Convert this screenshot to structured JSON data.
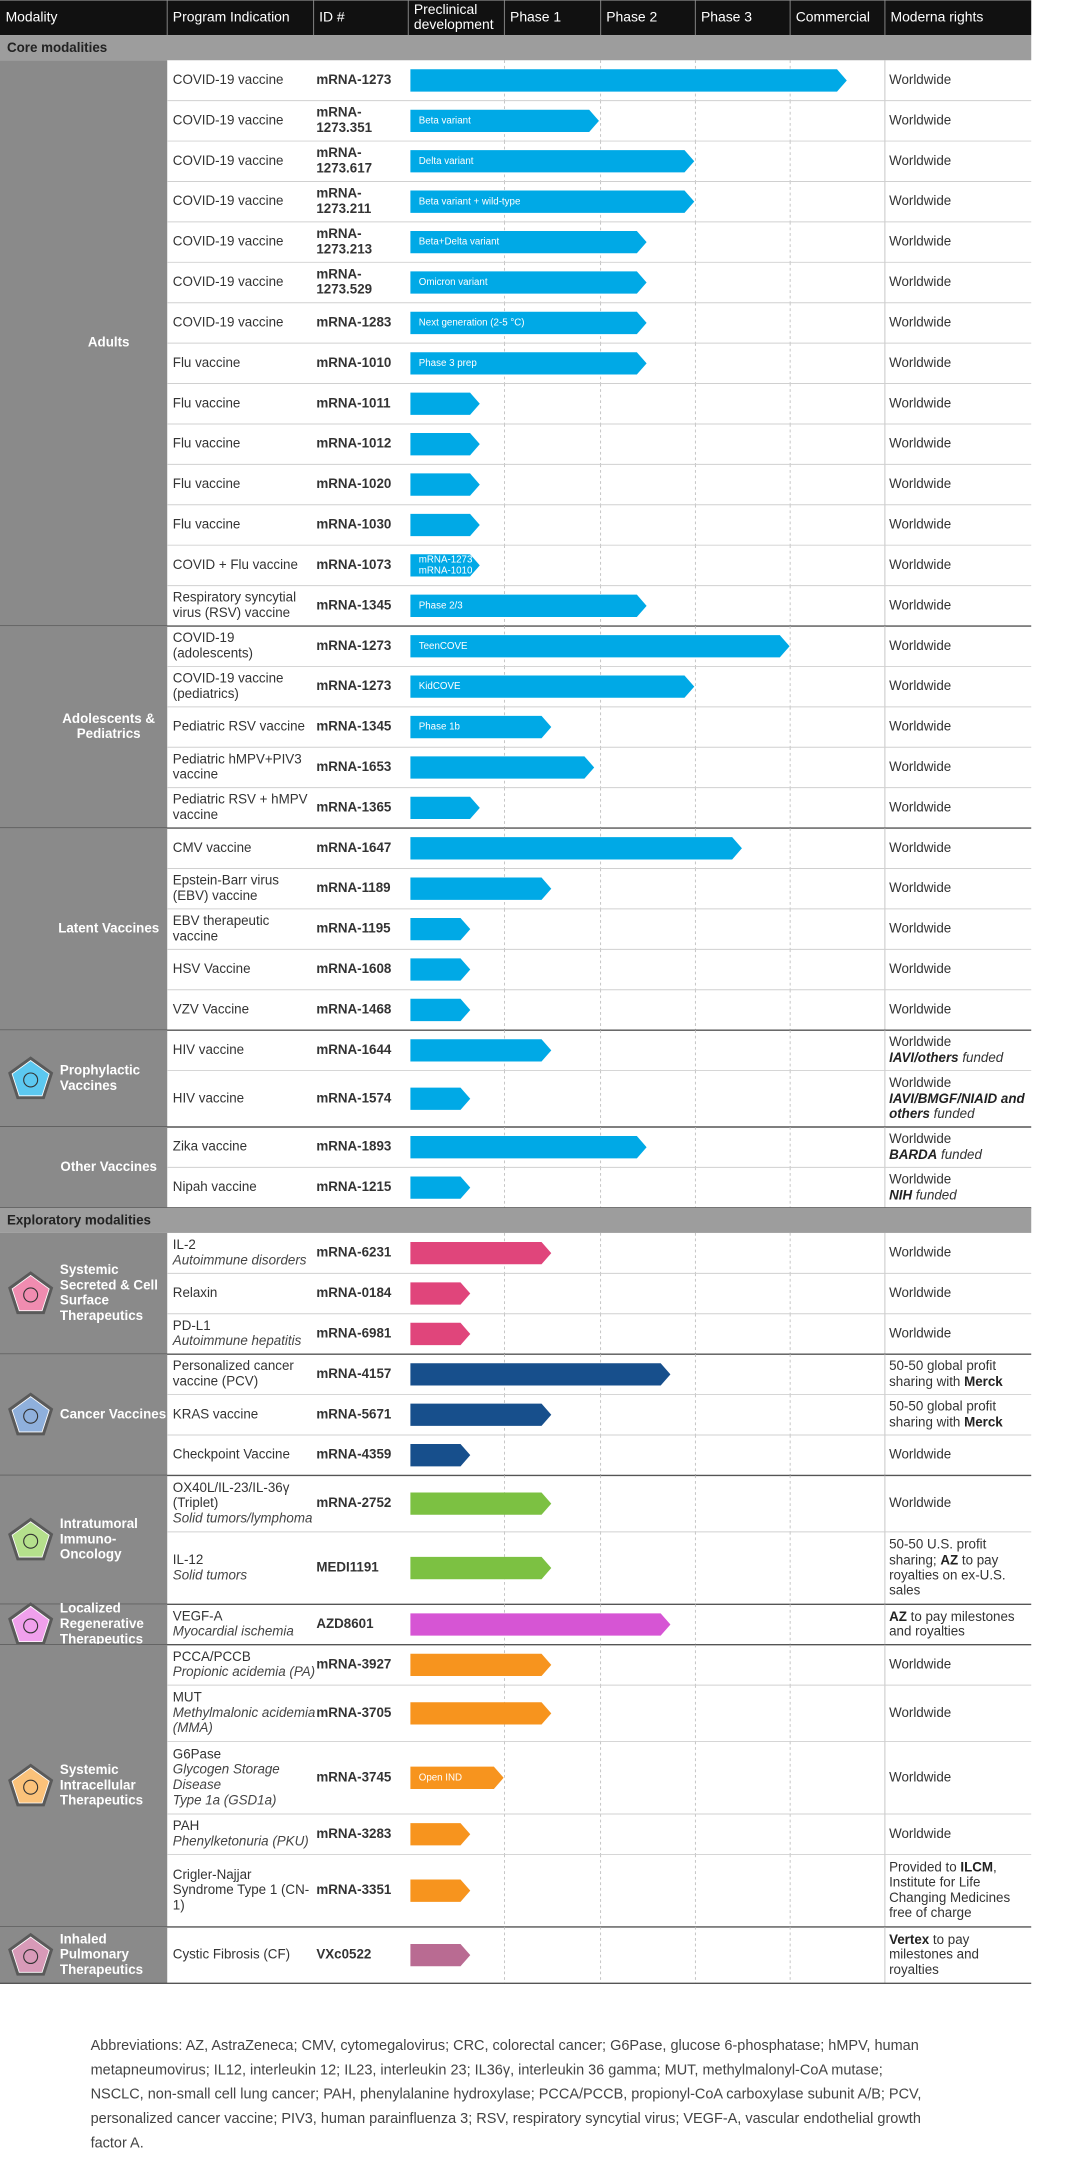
{
  "header": [
    [
      "Modality"
    ],
    [
      "Program Indication"
    ],
    [
      "ID #"
    ],
    [
      "Preclinical",
      "development"
    ],
    [
      "Phase 1"
    ],
    [
      "Phase 2"
    ],
    [
      "Phase 3"
    ],
    [
      "Commercial"
    ],
    [
      "Moderna rights"
    ]
  ],
  "sections": [
    {
      "title": "Core modalities",
      "groups": [
        {
          "name": [
            "Adults"
          ],
          "color": "#00a9e6",
          "rows": [
            {
              "indication": [
                "COVID-19 vaccine"
              ],
              "id": [
                "mRNA-1273"
              ],
              "stage": 4.6,
              "rights": [
                "Worldwide"
              ]
            },
            {
              "indication": [
                "COVID-19 vaccine"
              ],
              "id": [
                "mRNA-",
                "1273.351"
              ],
              "stage": 2.0,
              "label": [
                "Beta variant"
              ],
              "rights": [
                "Worldwide"
              ]
            },
            {
              "indication": [
                "COVID-19 vaccine"
              ],
              "id": [
                "mRNA-",
                "1273.617"
              ],
              "stage": 3.0,
              "label": [
                "Delta variant"
              ],
              "rights": [
                "Worldwide"
              ]
            },
            {
              "indication": [
                "COVID-19 vaccine"
              ],
              "id": [
                "mRNA-",
                "1273.211"
              ],
              "stage": 3.0,
              "label": [
                "Beta variant + wild-type"
              ],
              "rights": [
                "Worldwide"
              ]
            },
            {
              "indication": [
                "COVID-19 vaccine"
              ],
              "id": [
                "mRNA-",
                "1273.213"
              ],
              "stage": 2.5,
              "label": [
                "Beta+Delta variant"
              ],
              "rights": [
                "Worldwide"
              ]
            },
            {
              "indication": [
                "COVID-19 vaccine"
              ],
              "id": [
                "mRNA-",
                "1273.529"
              ],
              "stage": 2.5,
              "label": [
                "Omicron variant"
              ],
              "rights": [
                "Worldwide"
              ]
            },
            {
              "indication": [
                "COVID-19 vaccine"
              ],
              "id": [
                "mRNA-1283"
              ],
              "stage": 2.5,
              "label": [
                "Next generation (2-5 °C)"
              ],
              "rights": [
                "Worldwide"
              ]
            },
            {
              "indication": [
                "Flu vaccine"
              ],
              "id": [
                "mRNA-1010"
              ],
              "stage": 2.5,
              "label": [
                "Phase 3 prep"
              ],
              "rights": [
                "Worldwide"
              ]
            },
            {
              "indication": [
                "Flu vaccine"
              ],
              "id": [
                "mRNA-1011"
              ],
              "stage": 0.75,
              "rights": [
                "Worldwide"
              ]
            },
            {
              "indication": [
                "Flu vaccine"
              ],
              "id": [
                "mRNA-1012"
              ],
              "stage": 0.75,
              "rights": [
                "Worldwide"
              ]
            },
            {
              "indication": [
                "Flu vaccine"
              ],
              "id": [
                "mRNA-1020"
              ],
              "stage": 0.75,
              "rights": [
                "Worldwide"
              ]
            },
            {
              "indication": [
                "Flu vaccine"
              ],
              "id": [
                "mRNA-1030"
              ],
              "stage": 0.75,
              "rights": [
                "Worldwide"
              ]
            },
            {
              "indication": [
                "COVID + Flu vaccine"
              ],
              "id": [
                "mRNA-1073"
              ],
              "stage": 0.75,
              "label": [
                "mRNA-1273",
                "mRNA-1010"
              ],
              "rights": [
                "Worldwide"
              ]
            },
            {
              "indication": [
                "Respiratory syncytial",
                "virus (RSV) vaccine"
              ],
              "id": [
                "mRNA-1345"
              ],
              "stage": 2.5,
              "label": [
                "Phase 2/3"
              ],
              "rights": [
                "Worldwide"
              ]
            }
          ]
        },
        {
          "name": [
            "Adolescents &",
            "Pediatrics"
          ],
          "color": "#00a9e6",
          "rows": [
            {
              "indication": [
                "COVID-19",
                "(adolescents)"
              ],
              "id": [
                "mRNA-1273"
              ],
              "stage": 4.0,
              "label": [
                "TeenCOVE"
              ],
              "rights": [
                "Worldwide"
              ]
            },
            {
              "indication": [
                "COVID-19 vaccine",
                "(pediatrics)"
              ],
              "id": [
                "mRNA-1273"
              ],
              "stage": 3.0,
              "label": [
                "KidCOVE"
              ],
              "rights": [
                "Worldwide"
              ]
            },
            {
              "indication": [
                "Pediatric RSV vaccine"
              ],
              "id": [
                "mRNA-1345"
              ],
              "stage": 1.5,
              "label": [
                "Phase 1b"
              ],
              "rights": [
                "Worldwide"
              ]
            },
            {
              "indication": [
                "Pediatric hMPV+PIV3",
                "vaccine"
              ],
              "id": [
                "mRNA-1653"
              ],
              "stage": 1.95,
              "rights": [
                "Worldwide"
              ]
            },
            {
              "indication": [
                "Pediatric RSV + hMPV",
                "vaccine"
              ],
              "id": [
                "mRNA-1365"
              ],
              "stage": 0.75,
              "rights": [
                "Worldwide"
              ]
            }
          ]
        },
        {
          "name": [
            "Latent Vaccines"
          ],
          "color": "#00a9e6",
          "rows": [
            {
              "indication": [
                "CMV vaccine"
              ],
              "id": [
                "mRNA-1647"
              ],
              "stage": 3.5,
              "rights": [
                "Worldwide"
              ]
            },
            {
              "indication": [
                "Epstein-Barr virus",
                "(EBV) vaccine"
              ],
              "id": [
                "mRNA-1189"
              ],
              "stage": 1.5,
              "rights": [
                "Worldwide"
              ]
            },
            {
              "indication": [
                "EBV therapeutic",
                "vaccine"
              ],
              "id": [
                "mRNA-1195"
              ],
              "stage": 0.65,
              "rights": [
                "Worldwide"
              ]
            },
            {
              "indication": [
                "HSV Vaccine"
              ],
              "id": [
                "mRNA-1608"
              ],
              "stage": 0.65,
              "rights": [
                "Worldwide"
              ]
            },
            {
              "indication": [
                "VZV Vaccine"
              ],
              "id": [
                "mRNA-1468"
              ],
              "stage": 0.65,
              "rights": [
                "Worldwide"
              ]
            }
          ]
        },
        {
          "name": [
            "Prophylactic",
            "Vaccines"
          ],
          "color": "#00a9e6",
          "icon_color": "#5cc8f0",
          "rows": [
            {
              "indication": [
                "HIV vaccine"
              ],
              "id": [
                "mRNA-1644"
              ],
              "stage": 1.5,
              "rights": [
                "Worldwide",
                [
                  [
                    "IAVI/others",
                    "bi"
                  ],
                  [
                    " funded",
                    "i"
                  ]
                ]
              ]
            },
            {
              "indication": [
                "HIV vaccine"
              ],
              "id": [
                "mRNA-1574"
              ],
              "stage": 0.65,
              "rights": [
                "Worldwide",
                [
                  [
                    "IAVI/BMGF/NIAID and",
                    "bi"
                  ]
                ],
                [
                  [
                    "others",
                    "bi"
                  ],
                  [
                    " funded",
                    "i"
                  ]
                ]
              ]
            }
          ]
        },
        {
          "name": [
            "Other Vaccines"
          ],
          "color": "#00a9e6",
          "rows": [
            {
              "indication": [
                "Zika vaccine"
              ],
              "id": [
                "mRNA-1893"
              ],
              "stage": 2.5,
              "rights": [
                "Worldwide",
                [
                  [
                    "BARDA",
                    "bi"
                  ],
                  [
                    " funded",
                    "i"
                  ]
                ]
              ]
            },
            {
              "indication": [
                "Nipah vaccine"
              ],
              "id": [
                "mRNA-1215"
              ],
              "stage": 0.65,
              "rights": [
                "Worldwide",
                [
                  [
                    "NIH",
                    "bi"
                  ],
                  [
                    " funded",
                    "i"
                  ]
                ]
              ]
            }
          ]
        }
      ]
    },
    {
      "title": "Exploratory modalities",
      "groups": [
        {
          "name": [
            "Systemic",
            "Secreted & Cell",
            "Surface",
            "Therapeutics"
          ],
          "color": "#e0457b",
          "icon_color": "#f08cb0",
          "rows": [
            {
              "indication": [
                "IL-2"
              ],
              "detail": [
                "Autoimmune disorders"
              ],
              "id": [
                "mRNA-6231"
              ],
              "stage": 1.5,
              "rights": [
                "Worldwide"
              ]
            },
            {
              "indication": [
                "Relaxin"
              ],
              "id": [
                "mRNA-0184"
              ],
              "stage": 0.65,
              "rights": [
                "Worldwide"
              ]
            },
            {
              "indication": [
                "PD-L1"
              ],
              "detail": [
                "Autoimmune hepatitis"
              ],
              "id": [
                "mRNA-6981"
              ],
              "stage": 0.65,
              "rights": [
                "Worldwide"
              ]
            }
          ]
        },
        {
          "name": [
            "Cancer Vaccines"
          ],
          "color": "#174f8c",
          "icon_color": "#8fb0dc",
          "rows": [
            {
              "indication": [
                "Personalized cancer",
                "vaccine (PCV)"
              ],
              "id": [
                "mRNA-4157"
              ],
              "stage": 2.75,
              "rights": [
                "50-50 global profit",
                [
                  "sharing with ",
                  [
                    "Merck",
                    "b"
                  ]
                ]
              ]
            },
            {
              "indication": [
                "KRAS vaccine"
              ],
              "id": [
                "mRNA-5671"
              ],
              "stage": 1.5,
              "rights": [
                "50-50 global profit",
                [
                  "sharing with ",
                  [
                    "Merck",
                    "b"
                  ]
                ]
              ]
            },
            {
              "indication": [
                "Checkpoint Vaccine"
              ],
              "id": [
                "mRNA-4359"
              ],
              "stage": 0.65,
              "rights": [
                "Worldwide"
              ]
            }
          ]
        },
        {
          "name": [
            "Intratumoral",
            "Immuno-",
            "Oncology"
          ],
          "color": "#7cc142",
          "icon_color": "#b5e08c",
          "rows": [
            {
              "indication": [
                "OX40L/IL-23/IL-36γ",
                "(Triplet)"
              ],
              "detail": [
                "Solid tumors/lymphoma"
              ],
              "id": [
                "mRNA-2752"
              ],
              "stage": 1.5,
              "rights": [
                "Worldwide"
              ]
            },
            {
              "indication": [
                "IL-12"
              ],
              "detail": [
                "Solid tumors"
              ],
              "id": [
                "MEDI1191"
              ],
              "stage": 1.5,
              "rights": [
                "50-50 U.S. profit",
                [
                  "sharing; ",
                  [
                    "AZ",
                    "b"
                  ],
                  " to pay"
                ],
                "royalties on ex-U.S.",
                "sales"
              ]
            }
          ]
        },
        {
          "name": [
            "Localized",
            "Regenerative",
            "Therapeutics"
          ],
          "color": "#d655d4",
          "icon_color": "#f0a0ec",
          "rows": [
            {
              "indication": [
                "VEGF-A"
              ],
              "detail": [
                "Myocardial ischemia"
              ],
              "id": [
                "AZD8601"
              ],
              "stage": 2.75,
              "rights": [
                [
                  [
                    "AZ",
                    "b"
                  ],
                  " to pay milestones"
                ],
                "and royalties"
              ]
            }
          ]
        },
        {
          "name": [
            "Systemic",
            "Intracellular",
            "Therapeutics"
          ],
          "color": "#f7941e",
          "icon_color": "#fbc27a",
          "rows": [
            {
              "indication": [
                "PCCA/PCCB"
              ],
              "detail": [
                "Propionic acidemia (PA)"
              ],
              "id": [
                "mRNA-3927"
              ],
              "stage": 1.5,
              "rights": [
                "Worldwide"
              ]
            },
            {
              "indication": [
                "MUT"
              ],
              "detail": [
                "Methylmalonic acidemia",
                "(MMA)"
              ],
              "id": [
                "mRNA-3705"
              ],
              "stage": 1.5,
              "rights": [
                "Worldwide"
              ]
            },
            {
              "indication": [
                "G6Pase"
              ],
              "detail": [
                "Glycogen Storage",
                "Disease",
                "Type 1a (GSD1a)"
              ],
              "id": [
                "mRNA-3745"
              ],
              "stage": 1.0,
              "label": [
                "Open IND"
              ],
              "rights": [
                "Worldwide"
              ]
            },
            {
              "indication": [
                "PAH"
              ],
              "detail": [
                "Phenylketonuria (PKU)"
              ],
              "id": [
                "mRNA-3283"
              ],
              "stage": 0.65,
              "rights": [
                "Worldwide"
              ]
            },
            {
              "indication": [
                "Crigler-Najjar",
                "Syndrome Type 1 (CN-",
                "1)"
              ],
              "id": [
                "mRNA-3351"
              ],
              "stage": 0.65,
              "rights": [
                [
                  "Provided to ",
                  [
                    "ILCM",
                    "b"
                  ],
                  ","
                ],
                "Institute for Life",
                "Changing Medicines",
                "free of charge"
              ]
            }
          ]
        },
        {
          "name": [
            "Inhaled",
            "Pulmonary",
            "Therapeutics"
          ],
          "color": "#b96b92",
          "icon_color": "#d89ab8",
          "rows": [
            {
              "indication": [
                "Cystic Fibrosis (CF)"
              ],
              "id": [
                "VXc0522"
              ],
              "stage": 0.65,
              "rights": [
                [
                  [
                    "Vertex",
                    "b"
                  ],
                  " to pay"
                ],
                "milestones and",
                "royalties"
              ]
            }
          ]
        }
      ]
    }
  ],
  "abbreviations": [
    "Abbreviations: AZ, AstraZeneca; CMV, cytomegalovirus; CRC, colorectal cancer; G6Pase, glucose 6-phosphatase; hMPV, human",
    "metapneumovirus; IL12, interleukin 12; IL23, interleukin 23; IL36γ, interleukin 36 gamma; MUT, methylmalonyl-CoA mutase;",
    "NSCLC, non-small cell lung cancer; PAH, phenylalanine hydroxylase; PCCA/PCCB, propionyl-CoA carboxylase subunit A/B; PCV,",
    "personalized cancer vaccine; PIV3, human parainfluenza 3; RSV, respiratory syncytial virus; VEGF-A, vascular endothelial growth",
    "factor A."
  ]
}
